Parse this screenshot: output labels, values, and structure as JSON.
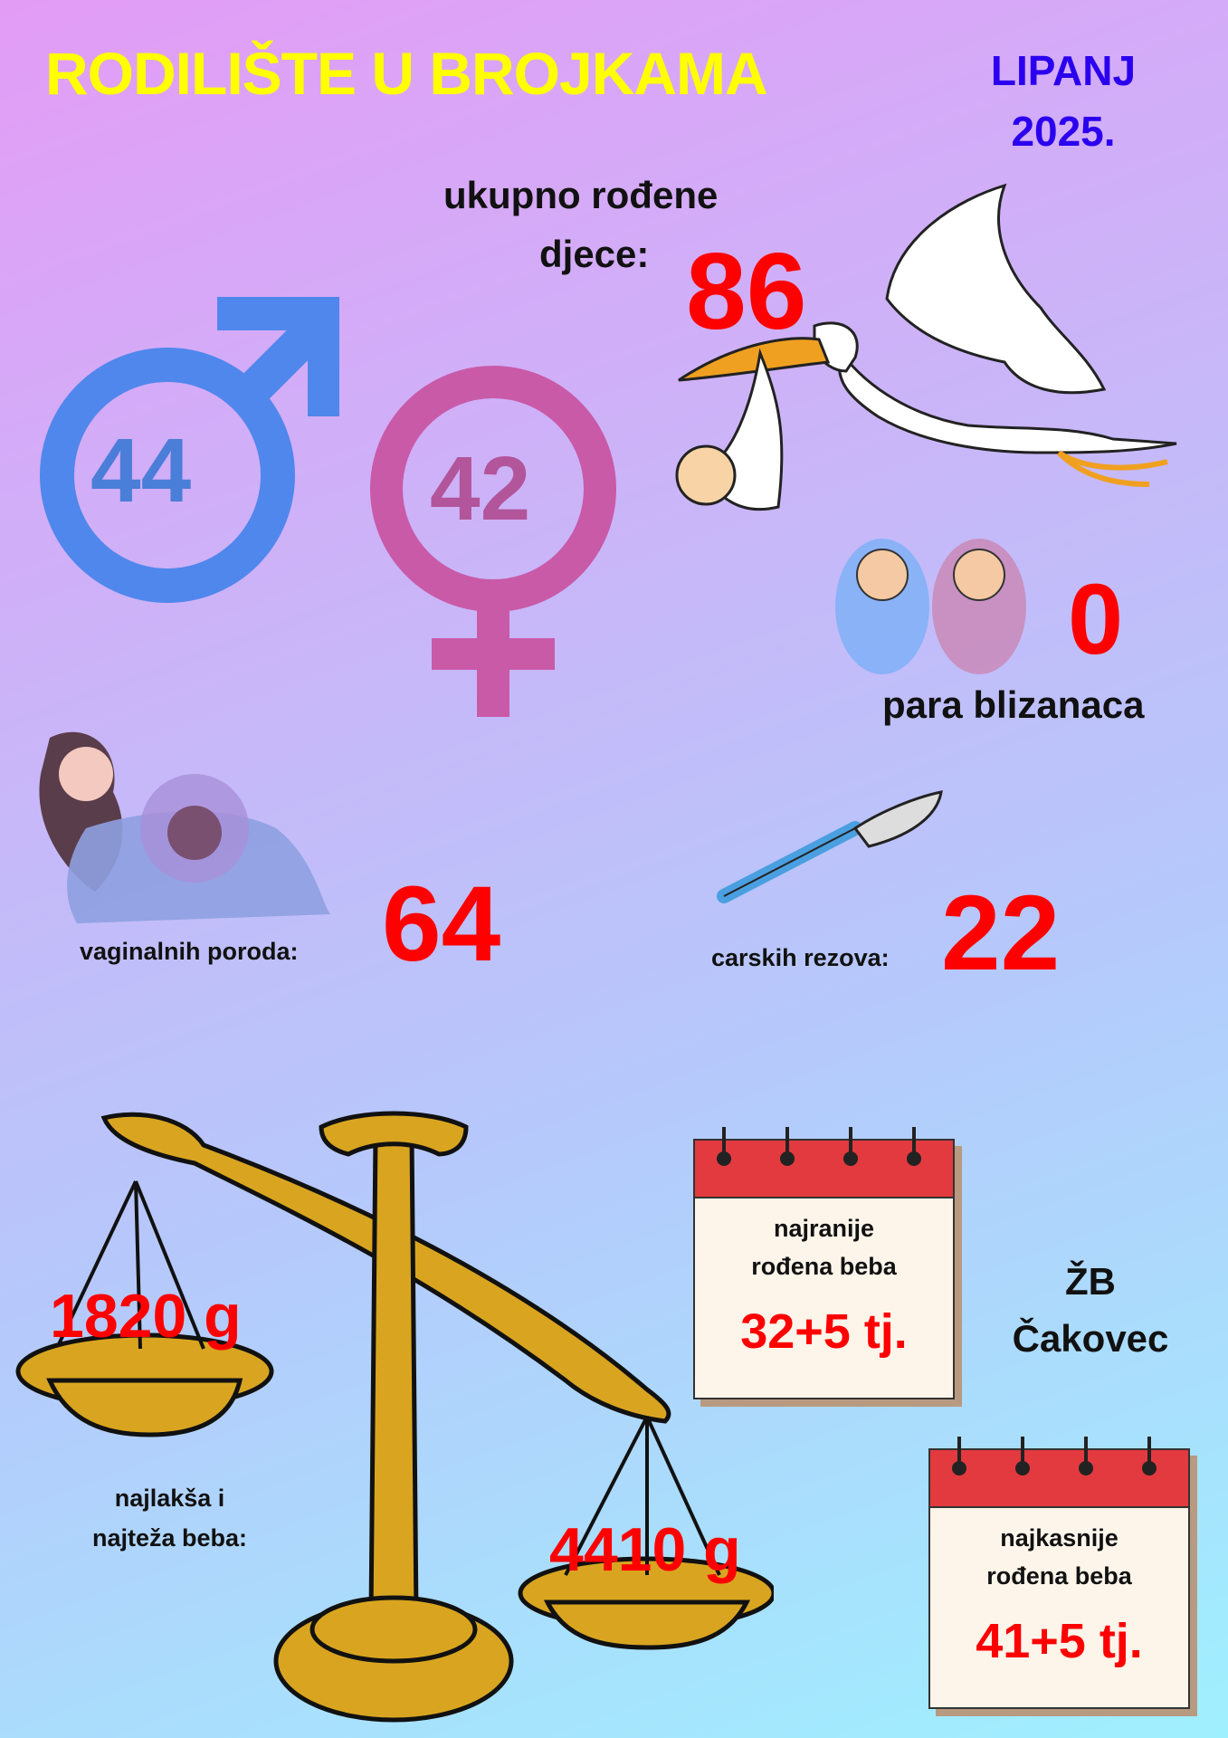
{
  "header": {
    "title": "RODILIŠTE U BROJKAMA",
    "month": "LIPANJ",
    "year": "2025."
  },
  "total": {
    "label_line1": "ukupno rođene",
    "label_line2": "djece:",
    "value": "86"
  },
  "gender": {
    "boys": "44",
    "girls": "42",
    "boy_color": "#4f86ee",
    "girl_color": "#c95aa8"
  },
  "twins": {
    "value": "0",
    "label": "para blizanaca"
  },
  "vaginal": {
    "label": "vaginalnih poroda:",
    "value": "64"
  },
  "cesarean": {
    "label": "carskih rezova:",
    "value": "22"
  },
  "weight": {
    "lightest": "1820 g",
    "heaviest": "4410 g",
    "label_line1": "najlakša i",
    "label_line2": "najteža beba:"
  },
  "earliest": {
    "line1": "najranije",
    "line2": "rođena beba",
    "value": "32+5 tj."
  },
  "latest": {
    "line1": "najkasnije",
    "line2": "rođena beba",
    "value": "41+5 tj."
  },
  "hospital": {
    "line1": "ŽB",
    "line2": "Čakovec"
  },
  "colors": {
    "title": "#ffff00",
    "month": "#2a00ee",
    "numbers": "#ff0000",
    "calendar_top": "#e23a3f",
    "scale_gold": "#d9a520"
  }
}
